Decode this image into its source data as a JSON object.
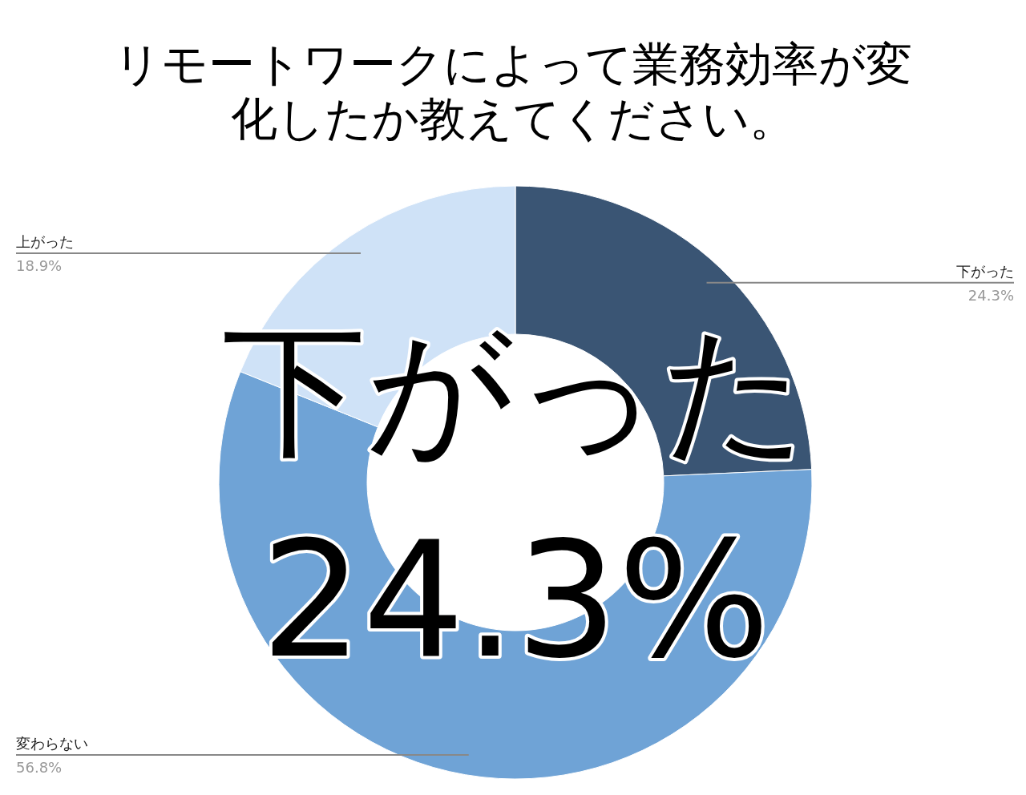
{
  "chart_data": {
    "type": "donut",
    "title": "リモートワークによって業務効率が変化したか教えてください。",
    "categories": [
      "下がった",
      "変わらない",
      "上がった"
    ],
    "values": [
      24.3,
      56.8,
      18.9
    ],
    "colors": [
      "#3a5574",
      "#6fa3d6",
      "#cfe2f7"
    ],
    "value_labels": [
      "24.3%",
      "56.8%",
      "18.9%"
    ],
    "annotations": [
      "下がった",
      "24.3%"
    ]
  }
}
